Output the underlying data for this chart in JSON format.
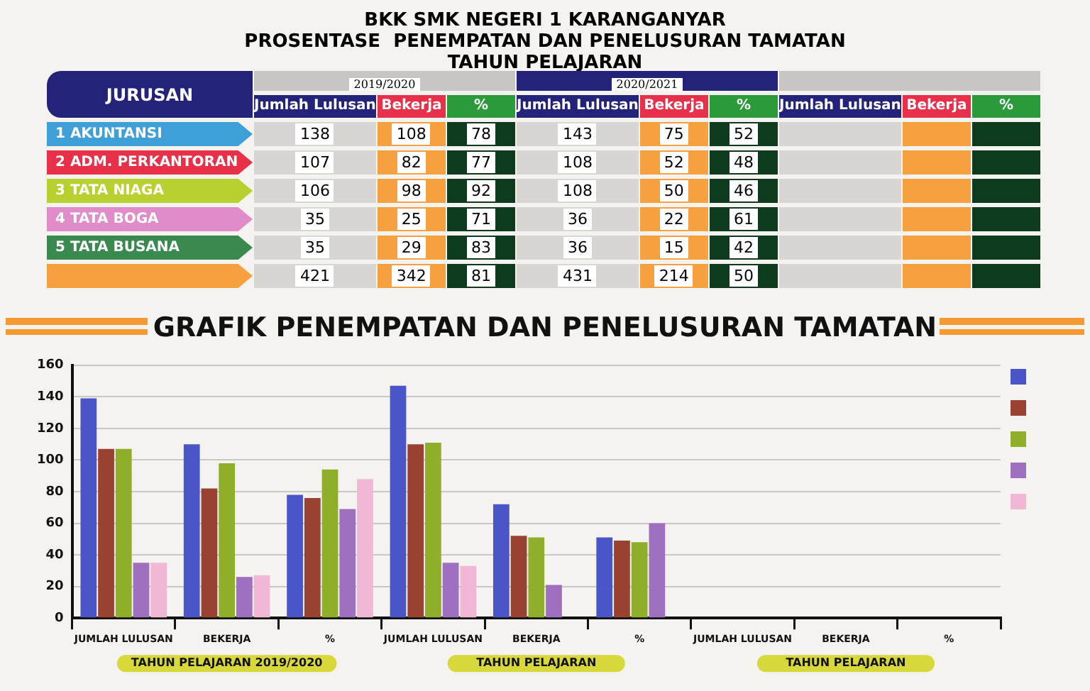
{
  "chart_data": [
    {
      "type": "other",
      "title": "BKK SMK NEGERI 1 KARANGANYAR",
      "subtitle": "PROSENTASE  PENEMPATAN DAN PENELUSURAN TAMATAN",
      "annotations": [
        "TAHUN PELAJARAN",
        "2019/2020",
        "2020/2021"
      ],
      "ylabel": "JURUSAN",
      "categories": [
        "Jumlah Lulusan",
        "Bekerja",
        "%",
        "Jumlah Lulusan",
        "Bekerja",
        "%",
        "Jumlah Lulusan",
        "Bekerja",
        "%"
      ],
      "y_categories": [
        "1 AKUNTANSI",
        "2 ADM. PERKANTORAN",
        "3 TATA NIAGA",
        "4 TATA BOGA",
        "5 TATA BUSANA",
        null
      ],
      "cell_labels": [
        [
          "138",
          "108",
          "78",
          "143",
          "75",
          "52",
          null,
          null,
          null
        ],
        [
          "107",
          "82",
          "77",
          "108",
          "52",
          "48",
          null,
          null,
          null
        ],
        [
          "106",
          "98",
          "92",
          "108",
          "50",
          "46",
          null,
          null,
          null
        ],
        [
          "35",
          "25",
          "71",
          "36",
          "22",
          "61",
          null,
          null,
          null
        ],
        [
          "35",
          "29",
          "83",
          "36",
          "15",
          "42",
          null,
          null,
          null
        ],
        [
          "421",
          "342",
          "81",
          "431",
          "214",
          "50",
          null,
          null,
          null
        ]
      ]
    },
    {
      "type": "bar",
      "title": "GRAFIK PENEMPATAN DAN PENELUSURAN TAMATAN",
      "categories": [
        "JUMLAH LULUSAN",
        "BEKERJA",
        "%",
        "JUMLAH LULUSAN",
        "BEKERJA",
        "%",
        "JUMLAH LULUSAN",
        "BEKERJA",
        "%"
      ],
      "series": [
        {
          "color": "#4a55c8",
          "values": [
            139,
            110,
            78,
            147,
            72,
            51,
            null,
            null,
            null
          ]
        },
        {
          "color": "#9a4232",
          "values": [
            107,
            82,
            76,
            110,
            52,
            49,
            null,
            null,
            null
          ]
        },
        {
          "color": "#8fae2a",
          "values": [
            107,
            98,
            94,
            111,
            51,
            48,
            null,
            null,
            null
          ]
        },
        {
          "color": "#a070c0",
          "values": [
            35,
            26,
            69,
            35,
            21,
            60,
            null,
            null,
            null
          ]
        },
        {
          "color": "#f0b8d4",
          "values": [
            35,
            27,
            88,
            33,
            null,
            null,
            null,
            null,
            null
          ]
        }
      ],
      "ylim": [
        0,
        160
      ],
      "yticks": [
        0,
        20,
        40,
        60,
        80,
        100,
        120,
        140,
        160
      ],
      "grid": "y",
      "annotations": [
        "TAHUN PELAJARAN 2019/2020",
        "TAHUN PELAJARAN",
        "TAHUN PELAJARAN"
      ]
    }
  ]
}
